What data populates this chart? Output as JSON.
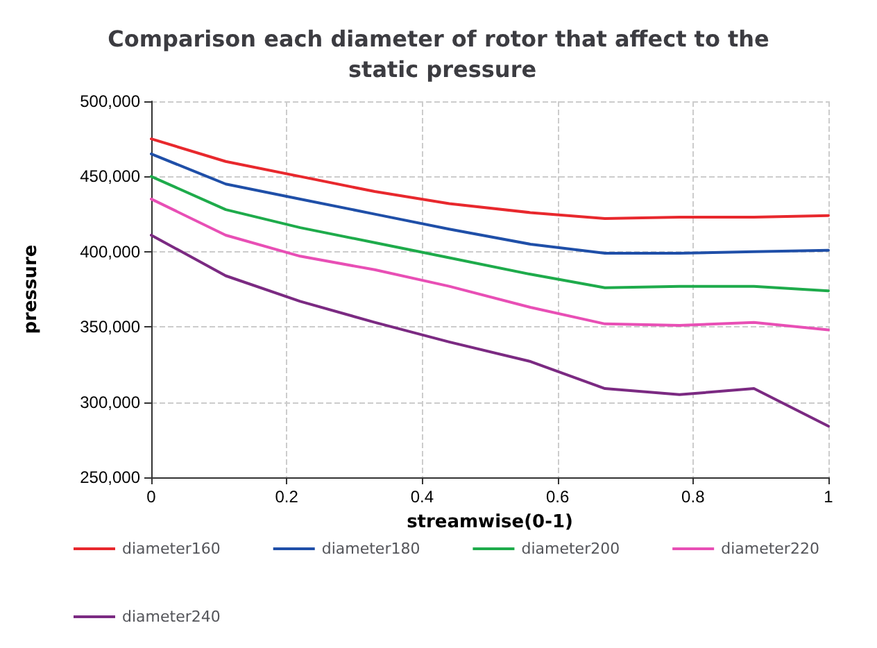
{
  "chart_data": {
    "type": "line",
    "title": "Comparison each diameter of rotor that affect to the static pressure",
    "xlabel": "streamwise(0-1)",
    "ylabel": "pressure",
    "x": [
      0,
      0.11,
      0.22,
      0.33,
      0.44,
      0.56,
      0.67,
      0.78,
      0.89,
      1
    ],
    "series": [
      {
        "name": "diameter160",
        "color": "#e8282d",
        "values": [
          475000,
          460000,
          450000,
          440000,
          432000,
          426000,
          422000,
          423000,
          423000,
          424000
        ]
      },
      {
        "name": "diameter180",
        "color": "#1f4fa8",
        "values": [
          465000,
          445000,
          435000,
          425000,
          415000,
          405000,
          399000,
          399000,
          400000,
          401000
        ]
      },
      {
        "name": "diameter200",
        "color": "#1eab4b",
        "values": [
          450000,
          428000,
          416000,
          406000,
          396000,
          385000,
          376000,
          377000,
          377000,
          374000
        ]
      },
      {
        "name": "diameter220",
        "color": "#e84fb5",
        "values": [
          435000,
          411000,
          397000,
          388000,
          377000,
          363000,
          352000,
          351000,
          353000,
          348000
        ]
      },
      {
        "name": "diameter240",
        "color": "#7b2a82",
        "values": [
          411000,
          384000,
          367000,
          353000,
          340000,
          327000,
          309000,
          305000,
          309000,
          284000
        ]
      }
    ],
    "xlim": [
      0,
      1
    ],
    "xticks": [
      0,
      0.2,
      0.4,
      0.6,
      0.8,
      1
    ],
    "ylim": [
      250000,
      500000
    ],
    "yticks": [
      {
        "value": 250000,
        "label": "250,000"
      },
      {
        "value": 300000,
        "label": "300,000"
      },
      {
        "value": 350000,
        "label": "350,000"
      },
      {
        "value": 400000,
        "label": "400,000"
      },
      {
        "value": 450000,
        "label": "450,000"
      },
      {
        "value": 500000,
        "label": "500,000"
      }
    ],
    "grid": true,
    "legend": "bottom",
    "marker": "none",
    "line_style": "solid"
  }
}
